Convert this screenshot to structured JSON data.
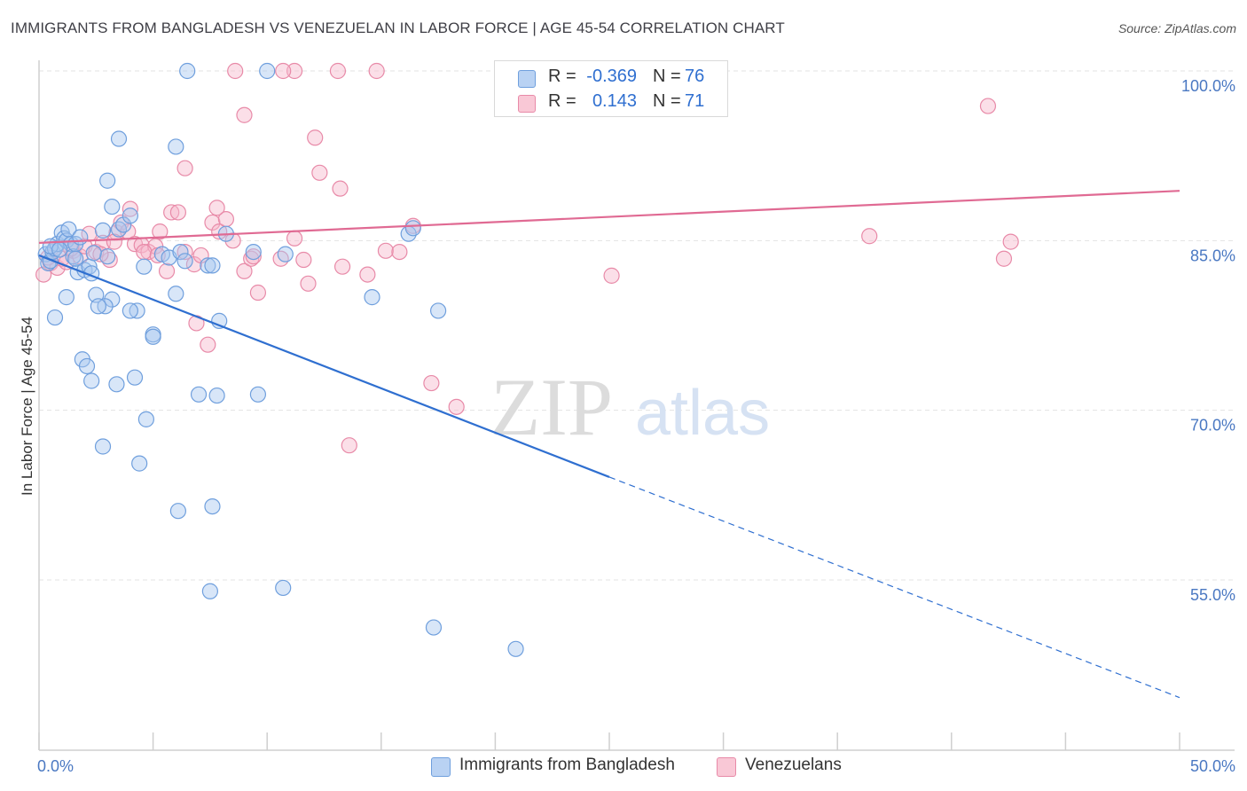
{
  "title": "IMMIGRANTS FROM BANGLADESH VS VENEZUELAN IN LABOR FORCE | AGE 45-54 CORRELATION CHART",
  "source": "Source: ZipAtlas.com",
  "watermark": {
    "zip": "ZIP",
    "atlas": "atlas"
  },
  "legend_top": {
    "r_label": "R =",
    "n_label": "N =",
    "rows": [
      {
        "r": "-0.369",
        "n": "76"
      },
      {
        "r": "0.143",
        "n": "71"
      }
    ]
  },
  "colors": {
    "blue_fill": "#a9c8f0",
    "blue_stroke": "#6f9fdd",
    "blue_line": "#2f6fd0",
    "pink_fill": "#f6b8cb",
    "pink_stroke": "#e88aa8",
    "pink_line": "#e06a93",
    "grid": "#e3e3e3",
    "axis_label": "#4a78c2"
  },
  "chart_data": {
    "type": "scatter",
    "title": "IMMIGRANTS FROM BANGLADESH VS VENEZUELAN IN LABOR FORCE | AGE 45-54 CORRELATION CHART",
    "xlabel": "",
    "ylabel": "In Labor Force | Age 45-54",
    "xlim": [
      0,
      50
    ],
    "ylim": [
      40,
      102
    ],
    "x_tick_labels": [
      "0.0%",
      "50.0%"
    ],
    "y_ticks": [
      55,
      70,
      85,
      100
    ],
    "y_tick_labels": [
      "55.0%",
      "70.0%",
      "85.0%",
      "100.0%"
    ],
    "legend": [
      "Immigrants from Bangladesh",
      "Venezuelans"
    ],
    "series": [
      {
        "name": "Immigrants from Bangladesh",
        "color": "blue",
        "r": -0.369,
        "n": 76,
        "trend": {
          "x0": 0,
          "y0": 83.7,
          "x1": 25,
          "y1": 64.1,
          "dashed_to_x": 50,
          "dashed_to_y": 44.6
        },
        "points": [
          [
            0.3,
            83.8
          ],
          [
            0.4,
            83.0
          ],
          [
            0.5,
            83.2
          ],
          [
            0.6,
            84.0
          ],
          [
            0.7,
            84.3
          ],
          [
            0.8,
            84.7
          ],
          [
            1.0,
            85.7
          ],
          [
            1.1,
            85.2
          ],
          [
            1.2,
            85.0
          ],
          [
            1.3,
            86.0
          ],
          [
            1.4,
            84.7
          ],
          [
            1.5,
            83.6
          ],
          [
            1.6,
            84.7
          ],
          [
            1.7,
            82.2
          ],
          [
            1.8,
            85.3
          ],
          [
            2.0,
            82.4
          ],
          [
            2.2,
            82.7
          ],
          [
            2.3,
            82.1
          ],
          [
            2.5,
            80.2
          ],
          [
            2.8,
            85.9
          ],
          [
            3.0,
            83.6
          ],
          [
            3.2,
            79.8
          ],
          [
            3.5,
            86.0
          ],
          [
            3.7,
            86.4
          ],
          [
            4.0,
            87.2
          ],
          [
            2.9,
            79.2
          ],
          [
            4.3,
            78.8
          ],
          [
            4.6,
            82.7
          ],
          [
            5.0,
            76.7
          ],
          [
            5.4,
            83.8
          ],
          [
            5.7,
            83.5
          ],
          [
            6.0,
            80.3
          ],
          [
            6.2,
            84.0
          ],
          [
            6.4,
            83.2
          ],
          [
            7.4,
            82.8
          ],
          [
            7.6,
            82.8
          ],
          [
            7.9,
            77.9
          ],
          [
            8.2,
            85.6
          ],
          [
            9.4,
            84.0
          ],
          [
            10.8,
            83.8
          ],
          [
            3.0,
            90.3
          ],
          [
            3.2,
            88.0
          ],
          [
            3.5,
            94.0
          ],
          [
            6.0,
            93.3
          ],
          [
            6.5,
            100.0
          ],
          [
            10.0,
            100.0
          ],
          [
            4.0,
            78.8
          ],
          [
            5.0,
            76.5
          ],
          [
            1.2,
            80.0
          ],
          [
            2.6,
            79.2
          ],
          [
            0.7,
            78.2
          ],
          [
            1.9,
            74.5
          ],
          [
            2.1,
            73.9
          ],
          [
            2.3,
            72.6
          ],
          [
            4.2,
            72.9
          ],
          [
            3.4,
            72.3
          ],
          [
            7.0,
            71.4
          ],
          [
            7.8,
            71.3
          ],
          [
            9.6,
            71.4
          ],
          [
            4.7,
            69.2
          ],
          [
            2.8,
            66.8
          ],
          [
            4.4,
            65.3
          ],
          [
            6.1,
            61.1
          ],
          [
            7.6,
            61.5
          ],
          [
            7.5,
            54.0
          ],
          [
            10.7,
            54.3
          ],
          [
            17.5,
            78.8
          ],
          [
            16.2,
            85.6
          ],
          [
            16.4,
            86.1
          ],
          [
            14.6,
            80.0
          ],
          [
            17.3,
            50.8
          ],
          [
            20.9,
            48.9
          ],
          [
            0.5,
            84.5
          ],
          [
            1.6,
            83.4
          ],
          [
            2.4,
            83.9
          ],
          [
            0.9,
            84.2
          ]
        ]
      },
      {
        "name": "Venezuelans",
        "color": "pink",
        "r": 0.143,
        "n": 71,
        "trend": {
          "x0": 0,
          "y0": 84.8,
          "x1": 50,
          "y1": 89.4
        },
        "points": [
          [
            0.2,
            82.0
          ],
          [
            0.5,
            83.0
          ],
          [
            0.8,
            82.6
          ],
          [
            1.0,
            83.4
          ],
          [
            1.2,
            83.1
          ],
          [
            1.5,
            84.1
          ],
          [
            1.8,
            83.6
          ],
          [
            2.0,
            84.5
          ],
          [
            2.2,
            85.6
          ],
          [
            2.5,
            84.0
          ],
          [
            2.8,
            84.8
          ],
          [
            3.1,
            83.3
          ],
          [
            3.4,
            85.7
          ],
          [
            3.6,
            86.6
          ],
          [
            3.9,
            85.8
          ],
          [
            4.2,
            84.7
          ],
          [
            4.5,
            84.6
          ],
          [
            4.8,
            84.0
          ],
          [
            5.1,
            84.5
          ],
          [
            5.3,
            85.8
          ],
          [
            5.6,
            82.3
          ],
          [
            5.8,
            87.5
          ],
          [
            6.1,
            87.5
          ],
          [
            6.4,
            84.0
          ],
          [
            6.8,
            82.9
          ],
          [
            7.1,
            83.7
          ],
          [
            7.4,
            75.8
          ],
          [
            7.6,
            86.6
          ],
          [
            7.9,
            85.8
          ],
          [
            8.2,
            86.9
          ],
          [
            8.5,
            85.0
          ],
          [
            9.0,
            82.3
          ],
          [
            9.3,
            83.4
          ],
          [
            9.6,
            80.4
          ],
          [
            10.6,
            83.4
          ],
          [
            11.2,
            85.2
          ],
          [
            11.6,
            83.3
          ],
          [
            11.8,
            81.2
          ],
          [
            12.1,
            94.1
          ],
          [
            12.3,
            91.0
          ],
          [
            13.3,
            82.7
          ],
          [
            13.2,
            89.6
          ],
          [
            14.4,
            82.0
          ],
          [
            15.2,
            84.1
          ],
          [
            15.8,
            84.0
          ],
          [
            16.4,
            86.3
          ],
          [
            17.2,
            72.4
          ],
          [
            18.3,
            70.3
          ],
          [
            13.6,
            66.9
          ],
          [
            11.2,
            100.0
          ],
          [
            8.6,
            100.0
          ],
          [
            10.7,
            100.0
          ],
          [
            13.1,
            100.0
          ],
          [
            14.8,
            100.0
          ],
          [
            9.0,
            96.1
          ],
          [
            6.4,
            91.4
          ],
          [
            4.0,
            87.8
          ],
          [
            6.9,
            77.7
          ],
          [
            7.8,
            87.9
          ],
          [
            25.1,
            81.9
          ],
          [
            36.4,
            85.4
          ],
          [
            41.6,
            96.9
          ],
          [
            42.3,
            83.4
          ],
          [
            42.6,
            84.9
          ],
          [
            0.4,
            83.5
          ],
          [
            1.4,
            84.3
          ],
          [
            2.7,
            83.8
          ],
          [
            3.3,
            84.9
          ],
          [
            4.6,
            84.0
          ],
          [
            5.2,
            83.7
          ],
          [
            9.4,
            83.6
          ]
        ]
      }
    ]
  }
}
